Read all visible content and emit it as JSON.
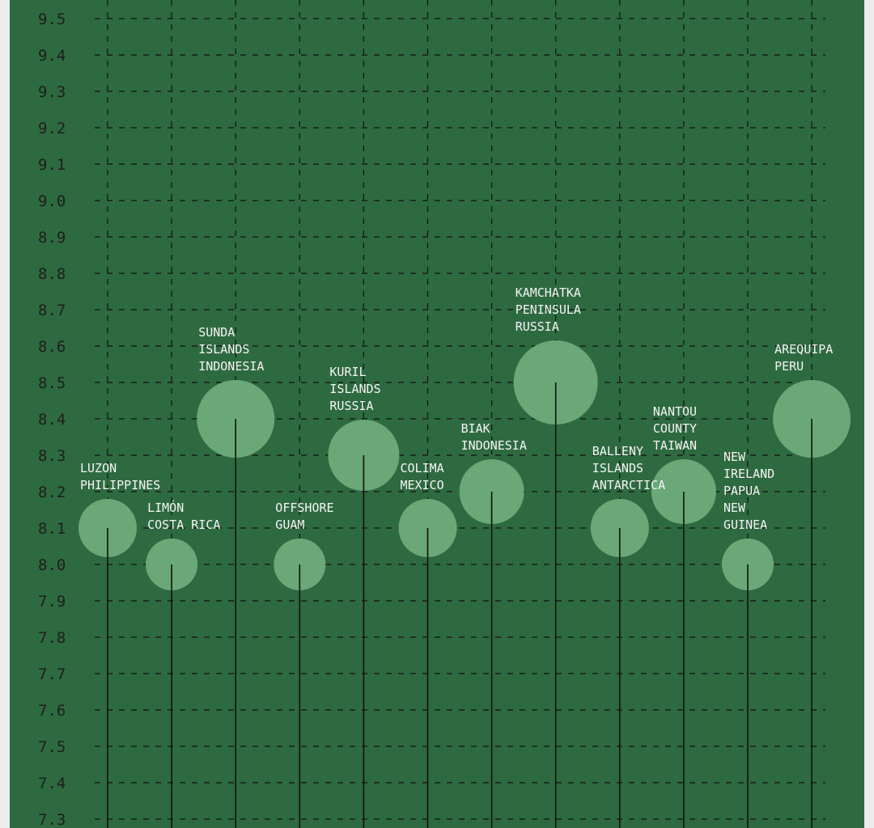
{
  "chart_data": {
    "type": "scatter",
    "title": "",
    "xlabel": "",
    "ylabel": "",
    "ylim": [
      7.3,
      9.5
    ],
    "yticks": [
      "9.5",
      "9.4",
      "9.3",
      "9.2",
      "9.1",
      "9.0",
      "8.9",
      "8.8",
      "8.7",
      "8.6",
      "8.5",
      "8.4",
      "8.3",
      "8.2",
      "8.1",
      "8.0",
      "7.9",
      "7.8",
      "7.7",
      "7.6",
      "7.5",
      "7.4",
      "7.3"
    ],
    "grid": true,
    "colors": {
      "panel": "#2e6a40",
      "bubble": "#6aa877",
      "stem": "#111111",
      "grid": "#111111",
      "label": "#f4f4f4",
      "tick": "#1e1e1e"
    },
    "points": [
      {
        "lines": [
          "LUZON",
          "PHILIPPINES"
        ],
        "magnitude": 8.1
      },
      {
        "lines": [
          "LIMÓN",
          "COSTA RICA"
        ],
        "magnitude": 8.0
      },
      {
        "lines": [
          "SUNDA",
          "ISLANDS",
          "INDONESIA"
        ],
        "magnitude": 8.4
      },
      {
        "lines": [
          "OFFSHORE",
          "GUAM"
        ],
        "magnitude": 8.0
      },
      {
        "lines": [
          "KURIL",
          "ISLANDS",
          "RUSSIA"
        ],
        "magnitude": 8.3
      },
      {
        "lines": [
          "COLIMA",
          "MEXICO"
        ],
        "magnitude": 8.1
      },
      {
        "lines": [
          "BIAK",
          "INDONESIA"
        ],
        "magnitude": 8.2
      },
      {
        "lines": [
          "KAMCHATKA",
          "PENINSULA",
          "RUSSIA"
        ],
        "magnitude": 8.5
      },
      {
        "lines": [
          "BALLENY",
          "ISLANDS",
          "ANTARCTICA"
        ],
        "magnitude": 8.1
      },
      {
        "lines": [
          "NANTOU",
          "COUNTY",
          "TAIWAN"
        ],
        "magnitude": 8.2
      },
      {
        "lines": [
          "NEW",
          "IRELAND",
          "PAPUA",
          "NEW",
          "GUINEA"
        ],
        "magnitude": 8.0
      },
      {
        "lines": [
          "AREQUIPA",
          "PERU"
        ],
        "magnitude": 8.4
      }
    ]
  }
}
